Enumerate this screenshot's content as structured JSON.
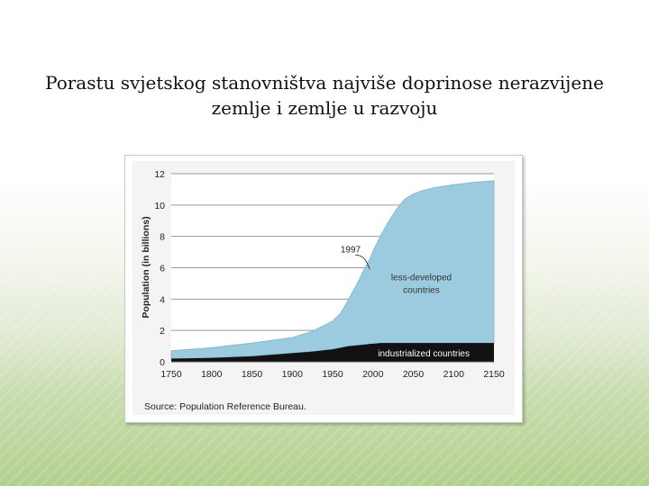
{
  "slide": {
    "title_line1": "Porastu svjetskog stanovništva najviše doprinose nerazvijene",
    "title_line2": "zemlje i zemlje u razvoju"
  },
  "colors": {
    "less_developed": "#9ccbe0",
    "industrialized": "#111111",
    "gridline": "#9a9a9a",
    "axis_text": "#222222"
  },
  "chart_data": {
    "type": "area",
    "ylabel": "Population (in billions)",
    "xlabel": "",
    "xlim": [
      1750,
      2150
    ],
    "ylim": [
      0,
      12
    ],
    "x_ticks": [
      1750,
      1800,
      1850,
      1900,
      1950,
      2000,
      2050,
      2100,
      2150
    ],
    "y_ticks": [
      0,
      2,
      4,
      6,
      8,
      10,
      12
    ],
    "grid": "horizontal",
    "stacking": "stacked",
    "x": [
      1750,
      1800,
      1850,
      1900,
      1925,
      1950,
      1960,
      1970,
      1980,
      1990,
      1997,
      2000,
      2010,
      2020,
      2030,
      2040,
      2050,
      2060,
      2075,
      2100,
      2125,
      2150
    ],
    "series": [
      {
        "name": "industrialized countries",
        "values": [
          0.2,
          0.25,
          0.35,
          0.55,
          0.65,
          0.8,
          0.9,
          1.0,
          1.05,
          1.1,
          1.15,
          1.15,
          1.2,
          1.2,
          1.2,
          1.2,
          1.2,
          1.2,
          1.2,
          1.2,
          1.2,
          1.2
        ]
      },
      {
        "name": "less-developed countries",
        "values": [
          0.5,
          0.65,
          0.85,
          1.0,
          1.3,
          1.8,
          2.2,
          3.0,
          3.9,
          4.9,
          5.5,
          5.9,
          6.9,
          7.8,
          8.6,
          9.2,
          9.5,
          9.7,
          9.9,
          10.1,
          10.25,
          10.35
        ]
      }
    ],
    "annotations": [
      {
        "text": "1997",
        "x": 1997,
        "y": 6.7
      },
      {
        "text": "less-developed",
        "text2": "countries"
      },
      {
        "text": "industrialized countries"
      }
    ],
    "source": "Source: Population Reference Bureau."
  }
}
